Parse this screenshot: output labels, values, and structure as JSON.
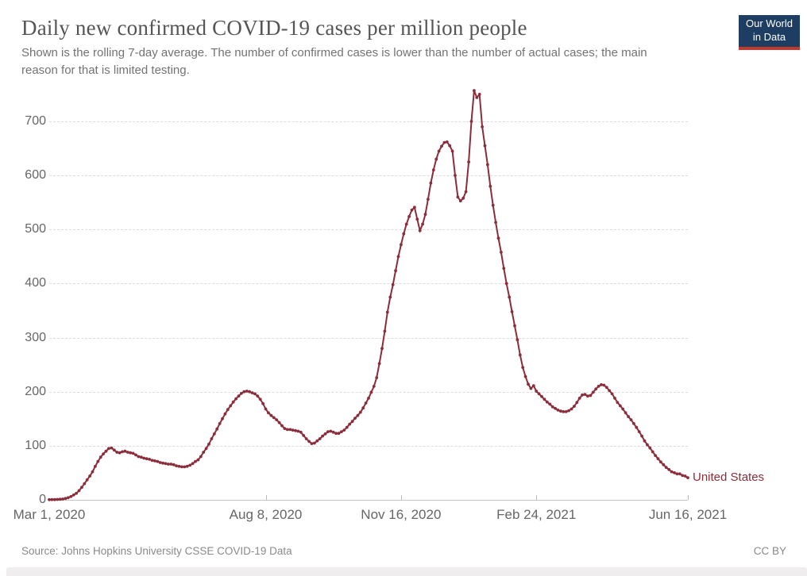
{
  "header": {
    "title": "Daily new confirmed COVID-19 cases per million people",
    "subtitle": "Shown is the rolling 7-day average. The number of confirmed cases is lower than the number of actual cases; the main reason for that is limited testing.",
    "logo": {
      "line1": "Our World",
      "line2": "in Data",
      "bg_color": "#1d3d63",
      "stripe_color": "#c0392b"
    }
  },
  "footer": {
    "source": "Source: Johns Hopkins University CSSE COVID-19 Data",
    "license": "CC BY"
  },
  "chart_data": {
    "type": "line",
    "title": "Daily new confirmed COVID-19 cases per million people",
    "ylabel": "",
    "xlabel": "",
    "ylim": [
      0,
      760
    ],
    "y_ticks": [
      0,
      100,
      200,
      300,
      400,
      500,
      600,
      700
    ],
    "x_ticks": [
      {
        "label": "Mar 1, 2020",
        "day": 0,
        "tick_mark": false
      },
      {
        "label": "Aug 8, 2020",
        "day": 160,
        "tick_mark": true
      },
      {
        "label": "Nov 16, 2020",
        "day": 260,
        "tick_mark": true
      },
      {
        "label": "Feb 24, 2021",
        "day": 360,
        "tick_mark": true
      },
      {
        "label": "Jun 16, 2021",
        "day": 472,
        "tick_mark": true
      }
    ],
    "grid": "horizontal-dashed",
    "legend_position": "end-of-line-label",
    "marker": "circle",
    "series": [
      {
        "name": "United States",
        "color": "#8b2d3a",
        "x_start_day": 0,
        "x_step_days": 2,
        "x_range_days": [
          0,
          472
        ],
        "values": [
          0.3,
          0.4,
          0.5,
          0.7,
          1,
          1.5,
          2.5,
          4,
          6,
          9,
          12,
          17,
          23,
          30,
          37,
          44,
          52,
          62,
          71,
          79,
          85,
          90,
          95,
          96,
          92,
          88,
          87,
          89,
          90,
          88,
          87,
          86,
          83,
          80,
          79,
          77,
          76,
          75,
          73,
          72,
          71,
          69,
          68,
          67,
          66,
          66,
          65,
          63,
          62,
          61,
          61,
          62,
          64,
          67,
          71,
          74,
          80,
          88,
          95,
          103,
          113,
          122,
          131,
          141,
          150,
          159,
          167,
          174,
          181,
          187,
          192,
          197,
          200,
          201,
          200,
          198,
          196,
          192,
          186,
          178,
          168,
          161,
          156,
          152,
          148,
          143,
          137,
          132,
          130,
          130,
          129,
          128,
          127,
          125,
          119,
          113,
          108,
          104,
          105,
          109,
          113,
          118,
          122,
          126,
          127,
          125,
          123,
          123,
          126,
          129,
          134,
          140,
          145,
          151,
          156,
          162,
          170,
          179,
          188,
          199,
          210,
          226,
          252,
          280,
          312,
          347,
          375,
          398,
          424,
          450,
          472,
          492,
          510,
          524,
          536,
          541,
          519,
          498,
          510,
          528,
          556,
          586,
          610,
          630,
          645,
          654,
          661,
          662,
          655,
          645,
          600,
          560,
          553,
          558,
          570,
          625,
          700,
          757,
          744,
          750,
          690,
          655,
          620,
          580,
          545,
          513,
          484,
          458,
          428,
          400,
          375,
          348,
          322,
          296,
          268,
          245,
          228,
          214,
          206,
          211,
          201,
          196,
          191,
          186,
          181,
          177,
          172,
          169,
          166,
          164,
          163,
          163,
          165,
          168,
          173,
          180,
          188,
          194,
          195,
          192,
          193,
          199,
          205,
          210,
          213,
          212,
          208,
          202,
          196,
          188,
          180,
          174,
          168,
          161,
          154,
          148,
          141,
          134,
          126,
          118,
          109,
          102,
          96,
          89,
          82,
          76,
          70,
          65,
          60,
          56,
          52,
          50,
          48,
          48,
          45,
          44,
          41
        ]
      }
    ]
  }
}
